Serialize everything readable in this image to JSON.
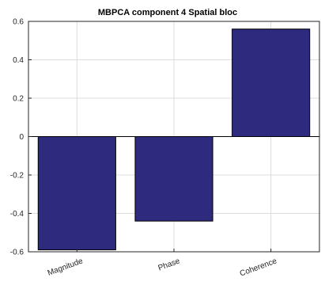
{
  "chart_data": {
    "type": "bar",
    "title": "MBPCA component 4 Spatial bloc",
    "categories": [
      "Magnitude",
      "Phase",
      "Coherence"
    ],
    "values": [
      -0.59,
      -0.44,
      0.56
    ],
    "ylim": [
      -0.6,
      0.6
    ],
    "yticks": [
      -0.6,
      -0.4,
      -0.2,
      0,
      0.2,
      0.4,
      0.6
    ],
    "ytick_labels": [
      "-0.6",
      "-0.4",
      "-0.2",
      "0",
      "0.2",
      "0.4",
      "0.6"
    ],
    "grid": true,
    "colors": {
      "bar": "#2e2a7e",
      "bar_edge": "#000000",
      "grid": "#dcdcdc",
      "axis": "#262626"
    }
  }
}
